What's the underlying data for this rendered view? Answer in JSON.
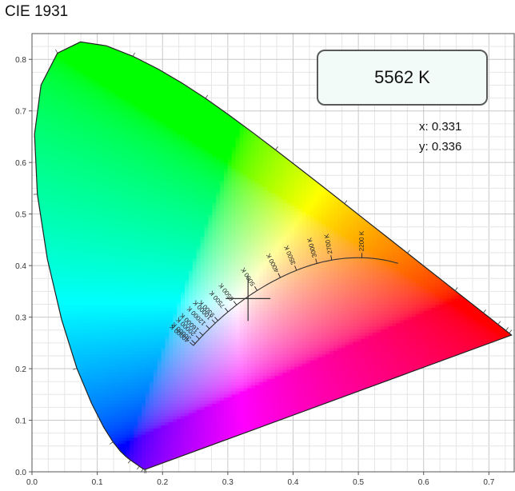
{
  "chart_data": {
    "type": "scatter",
    "title": "CIE 1931",
    "xlim": [
      0.0,
      0.74
    ],
    "ylim": [
      0.0,
      0.85
    ],
    "x_ticks": [
      "0.0",
      "0.1",
      "0.2",
      "0.3",
      "0.4",
      "0.5",
      "0.6",
      "0.7"
    ],
    "y_ticks": [
      "0.0",
      "0.1",
      "0.2",
      "0.3",
      "0.4",
      "0.5",
      "0.6",
      "0.7",
      "0.8"
    ],
    "grid": true,
    "spectral_locus": [
      [
        0.1741,
        0.005
      ],
      [
        0.1738,
        0.0049
      ],
      [
        0.1736,
        0.0049
      ],
      [
        0.1733,
        0.0048
      ],
      [
        0.173,
        0.0048
      ],
      [
        0.1726,
        0.0048
      ],
      [
        0.1721,
        0.0048
      ],
      [
        0.1714,
        0.0051
      ],
      [
        0.1703,
        0.0058
      ],
      [
        0.1689,
        0.0069
      ],
      [
        0.1669,
        0.0086
      ],
      [
        0.1644,
        0.0109
      ],
      [
        0.1611,
        0.0138
      ],
      [
        0.1566,
        0.0177
      ],
      [
        0.151,
        0.0227
      ],
      [
        0.144,
        0.0297
      ],
      [
        0.1355,
        0.0399
      ],
      [
        0.1241,
        0.0578
      ],
      [
        0.1096,
        0.0868
      ],
      [
        0.0913,
        0.1327
      ],
      [
        0.0687,
        0.2007
      ],
      [
        0.0454,
        0.295
      ],
      [
        0.0235,
        0.4127
      ],
      [
        0.0082,
        0.5384
      ],
      [
        0.0039,
        0.6548
      ],
      [
        0.0139,
        0.7502
      ],
      [
        0.0389,
        0.812
      ],
      [
        0.0743,
        0.8338
      ],
      [
        0.1142,
        0.8262
      ],
      [
        0.1547,
        0.8059
      ],
      [
        0.1929,
        0.7816
      ],
      [
        0.2296,
        0.7543
      ],
      [
        0.2658,
        0.7243
      ],
      [
        0.3016,
        0.6923
      ],
      [
        0.3373,
        0.6589
      ],
      [
        0.3731,
        0.6245
      ],
      [
        0.4087,
        0.5896
      ],
      [
        0.4441,
        0.5547
      ],
      [
        0.4788,
        0.5202
      ],
      [
        0.5125,
        0.4866
      ],
      [
        0.5448,
        0.4544
      ],
      [
        0.5752,
        0.4242
      ],
      [
        0.6029,
        0.3965
      ],
      [
        0.627,
        0.3725
      ],
      [
        0.6482,
        0.3514
      ],
      [
        0.6658,
        0.334
      ],
      [
        0.6801,
        0.3197
      ],
      [
        0.6915,
        0.3083
      ],
      [
        0.7006,
        0.2993
      ],
      [
        0.7079,
        0.292
      ],
      [
        0.714,
        0.2859
      ],
      [
        0.719,
        0.2809
      ],
      [
        0.723,
        0.277
      ],
      [
        0.726,
        0.274
      ],
      [
        0.7283,
        0.2717
      ],
      [
        0.73,
        0.27
      ],
      [
        0.7311,
        0.2689
      ],
      [
        0.732,
        0.268
      ],
      [
        0.7327,
        0.2673
      ],
      [
        0.7334,
        0.2666
      ],
      [
        0.734,
        0.266
      ],
      [
        0.7344,
        0.2656
      ],
      [
        0.7346,
        0.2654
      ],
      [
        0.7347,
        0.2653
      ],
      [
        0.7347,
        0.2653
      ]
    ],
    "planckian_locus": {
      "temperatures": [
        2200,
        2700,
        3000,
        3500,
        4000,
        5000,
        6500,
        7500,
        9300,
        10000,
        12000,
        16000,
        20000,
        30000,
        40000
      ],
      "labels": [
        "2200 K",
        "2700 K",
        "3000 K",
        "3500 K",
        "4000 K",
        "5000 K",
        "6500 K",
        "7500 K",
        "9300 K",
        "10000 K",
        "12000 K",
        "16000 K",
        "20000 K",
        "30000 K",
        "40000 K"
      ]
    },
    "measurement": {
      "x": 0.331,
      "y": 0.336,
      "cct": "5562 K"
    }
  },
  "labels": {
    "title": "CIE 1931",
    "cct": "5562 K",
    "x": "x: 0.331",
    "y": "y: 0.336"
  },
  "colors": {
    "frame": "#555555",
    "grid": "#dcdcdc",
    "locus": "#222222"
  }
}
